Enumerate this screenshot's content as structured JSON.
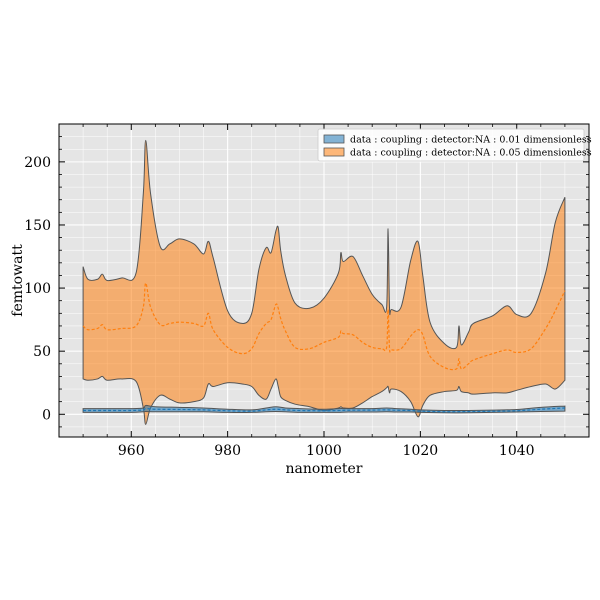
{
  "chart_data": {
    "type": "area",
    "xlabel": "nanometer",
    "ylabel": "femtowatt",
    "xlim": [
      945,
      1055
    ],
    "ylim": [
      -18,
      230
    ],
    "x_ticks": [
      960,
      980,
      1000,
      1020,
      1040
    ],
    "y_ticks": [
      0,
      50,
      100,
      150,
      200
    ],
    "grid": true,
    "legend_position": "top-right",
    "series": [
      {
        "name": "data : coupling : detector:NA : 0.01 dimensionless",
        "color": "#1f77b4",
        "x": [
          950,
          955,
          960,
          962.5,
          963,
          965,
          970,
          975,
          980,
          985,
          988,
          990,
          992,
          995,
          1000,
          1003,
          1005,
          1010,
          1013,
          1015,
          1018,
          1020,
          1025,
          1030,
          1035,
          1040,
          1045,
          1050
        ],
        "mid": [
          3,
          3,
          3,
          3.5,
          4.5,
          4,
          3.8,
          3.5,
          2.8,
          2.5,
          3.5,
          4,
          3.5,
          3,
          2.8,
          3,
          3.2,
          3.3,
          3.5,
          3.2,
          3,
          2.5,
          2,
          2.2,
          2.4,
          2.8,
          4,
          5
        ],
        "upper": [
          4.5,
          4.5,
          4.5,
          5,
          7,
          6,
          5.5,
          5,
          4,
          3.5,
          5,
          6,
          5,
          4.5,
          4,
          4.5,
          4.5,
          4.5,
          5,
          4.5,
          4,
          3.5,
          3,
          3,
          3.3,
          3.8,
          5.5,
          6.5
        ],
        "lower": [
          1.5,
          1.5,
          1.5,
          2,
          2.2,
          2,
          2,
          2,
          1.5,
          1.5,
          2,
          2.2,
          2,
          1.5,
          1.5,
          1.5,
          1.8,
          1.8,
          2,
          1.8,
          1.8,
          1.5,
          1.2,
          1.2,
          1.5,
          1.8,
          2.2,
          2.5
        ]
      },
      {
        "name": "data : coupling : detector:NA : 0.05 dimensionless",
        "color": "#ff7f0e",
        "x": [
          950,
          951,
          953,
          954,
          955,
          958,
          961,
          962.5,
          963,
          964,
          966,
          968,
          970,
          973,
          975,
          976,
          977,
          980,
          983,
          985,
          986.5,
          988,
          989,
          990,
          990.5,
          991,
          992,
          994,
          997,
          1000,
          1003,
          1003.5,
          1004,
          1006,
          1008,
          1010,
          1012,
          1013,
          1013.3,
          1013.6,
          1014,
          1016,
          1018,
          1019.5,
          1020.5,
          1022,
          1025,
          1027.5,
          1028,
          1028.5,
          1030,
          1031,
          1035,
          1038,
          1040,
          1043,
          1046,
          1048,
          1050
        ],
        "upper": [
          117,
          107,
          107,
          111,
          106,
          108,
          112,
          175,
          217,
          175,
          133,
          135,
          139,
          135,
          127,
          137,
          124,
          82,
          72,
          80,
          115,
          132,
          128,
          145,
          148,
          130,
          110,
          88,
          84,
          92,
          112,
          128,
          121,
          125,
          110,
          95,
          87,
          85,
          147,
          84,
          83,
          85,
          122,
          137,
          110,
          73,
          56,
          53,
          70,
          55,
          65,
          72,
          78,
          86,
          79,
          80,
          112,
          152,
          172
        ],
        "mid": [
          70,
          67,
          68,
          71,
          67,
          68,
          70,
          85,
          104,
          85,
          71,
          72,
          73,
          72,
          70,
          80,
          67,
          53,
          48,
          52,
          64,
          72,
          75,
          87,
          84,
          76,
          66,
          53,
          52,
          57,
          61,
          66,
          64,
          63,
          57,
          53,
          52,
          53,
          83,
          52,
          51,
          52,
          62,
          67,
          63,
          46,
          37,
          36,
          44,
          36,
          40,
          43,
          48,
          51,
          49,
          52,
          68,
          82,
          98
        ],
        "lower": [
          28,
          27,
          28,
          30,
          27,
          28,
          26,
          5,
          -8,
          5,
          15,
          12,
          9,
          10,
          13,
          24,
          22,
          25,
          24,
          22,
          15,
          12,
          20,
          28,
          22,
          14,
          11,
          8,
          6,
          3,
          5,
          6,
          5,
          5,
          9,
          14,
          18,
          21,
          22,
          17,
          20,
          18,
          10,
          -2,
          7,
          15,
          18,
          19,
          22,
          18,
          17,
          16,
          17,
          17,
          19,
          22,
          24,
          20,
          27
        ]
      }
    ]
  }
}
